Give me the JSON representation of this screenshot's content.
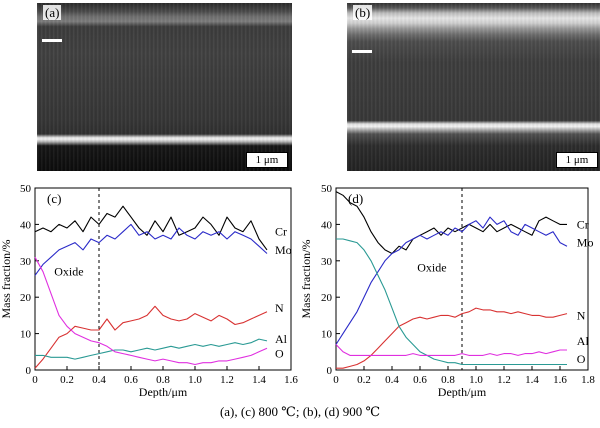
{
  "figure": {
    "caption": "(a), (c) 800 ℃; (b), (d) 900 ℃"
  },
  "micrographs": [
    {
      "label": "(a)",
      "scale_bar": "1 μm"
    },
    {
      "label": "(b)",
      "scale_bar": "1 μm"
    }
  ],
  "chart_data": [
    {
      "type": "line",
      "panel": "(c)",
      "xlabel": "Depth/μm",
      "ylabel": "Mass fraction/%",
      "xlim": [
        0,
        1.6
      ],
      "ylim": [
        0,
        50
      ],
      "xticks": [
        "0",
        "0.2",
        "0.4",
        "0.6",
        "0.8",
        "1.0",
        "1.2",
        "1.4",
        "1.6"
      ],
      "yticks": [
        "0",
        "10",
        "20",
        "30",
        "40",
        "50"
      ],
      "grid": false,
      "annotation": {
        "text": "Oxide",
        "x": 0.12,
        "y": 26
      },
      "divider_x": 0.4,
      "series": [
        {
          "name": "Cr",
          "color": "#000000",
          "label_pos": [
            1.5,
            38
          ],
          "x": [
            0,
            0.05,
            0.1,
            0.15,
            0.2,
            0.25,
            0.3,
            0.35,
            0.4,
            0.45,
            0.5,
            0.55,
            0.6,
            0.65,
            0.7,
            0.75,
            0.8,
            0.85,
            0.9,
            0.95,
            1.0,
            1.05,
            1.1,
            1.15,
            1.2,
            1.25,
            1.3,
            1.35,
            1.4,
            1.45
          ],
          "values": [
            38,
            39,
            38,
            40,
            39,
            41,
            38,
            42,
            40,
            43,
            42,
            45,
            42,
            39,
            37,
            41,
            38,
            42,
            37,
            38,
            39,
            42,
            40,
            37,
            42,
            39,
            38,
            41,
            36,
            33
          ]
        },
        {
          "name": "Mo",
          "color": "#2a2ac8",
          "label_pos": [
            1.5,
            33
          ],
          "x": [
            0,
            0.05,
            0.1,
            0.15,
            0.2,
            0.25,
            0.3,
            0.35,
            0.4,
            0.45,
            0.5,
            0.55,
            0.6,
            0.65,
            0.7,
            0.75,
            0.8,
            0.85,
            0.9,
            0.95,
            1.0,
            1.05,
            1.1,
            1.15,
            1.2,
            1.25,
            1.3,
            1.35,
            1.4,
            1.45
          ],
          "values": [
            26,
            29,
            31,
            33,
            34,
            35,
            33,
            36,
            35,
            37,
            36,
            38,
            40,
            37,
            38,
            36,
            37,
            36,
            39,
            37,
            36,
            38,
            37,
            38,
            36,
            38,
            37,
            36,
            34,
            32
          ]
        },
        {
          "name": "N",
          "color": "#d83232",
          "label_pos": [
            1.5,
            17
          ],
          "x": [
            0,
            0.05,
            0.1,
            0.15,
            0.2,
            0.25,
            0.3,
            0.35,
            0.4,
            0.45,
            0.5,
            0.55,
            0.6,
            0.65,
            0.7,
            0.75,
            0.8,
            0.85,
            0.9,
            0.95,
            1.0,
            1.05,
            1.1,
            1.15,
            1.2,
            1.25,
            1.3,
            1.35,
            1.4,
            1.45
          ],
          "values": [
            0.5,
            3,
            6,
            9,
            10,
            12,
            11.5,
            11,
            11,
            14,
            11,
            13,
            13.5,
            14,
            15,
            17.5,
            15,
            14,
            13.5,
            14,
            15.5,
            14.5,
            13.5,
            15,
            14,
            12.5,
            13,
            14,
            15,
            16
          ]
        },
        {
          "name": "Al",
          "color": "#2a9a94",
          "label_pos": [
            1.5,
            8.5
          ],
          "x": [
            0,
            0.05,
            0.1,
            0.15,
            0.2,
            0.25,
            0.3,
            0.35,
            0.4,
            0.45,
            0.5,
            0.55,
            0.6,
            0.65,
            0.7,
            0.75,
            0.8,
            0.85,
            0.9,
            0.95,
            1.0,
            1.05,
            1.1,
            1.15,
            1.2,
            1.25,
            1.3,
            1.35,
            1.4,
            1.45
          ],
          "values": [
            4,
            4,
            3.5,
            3.5,
            3.5,
            3,
            3.5,
            4,
            4.5,
            5,
            5.5,
            5.5,
            5,
            5.5,
            6,
            5.5,
            6,
            6.5,
            6,
            6.5,
            7,
            6.5,
            7,
            6.5,
            7,
            7.5,
            7,
            7.5,
            8.5,
            8
          ]
        },
        {
          "name": "O",
          "color": "#e030e0",
          "label_pos": [
            1.5,
            4.5
          ],
          "x": [
            0,
            0.05,
            0.1,
            0.15,
            0.2,
            0.25,
            0.3,
            0.35,
            0.4,
            0.45,
            0.5,
            0.55,
            0.6,
            0.65,
            0.7,
            0.75,
            0.8,
            0.85,
            0.9,
            0.95,
            1.0,
            1.05,
            1.1,
            1.15,
            1.2,
            1.25,
            1.3,
            1.35,
            1.4,
            1.45
          ],
          "values": [
            31,
            27,
            21,
            15,
            12,
            10,
            9,
            8,
            7.5,
            6.5,
            5,
            4.5,
            4,
            3.5,
            3,
            2.5,
            3,
            2.5,
            2,
            2,
            1.5,
            2,
            2,
            2.5,
            2.5,
            3,
            3.5,
            4,
            5,
            6
          ]
        }
      ]
    },
    {
      "type": "line",
      "panel": "(d)",
      "xlabel": "Depth/μm",
      "ylabel": "Mass fraction/%",
      "xlim": [
        0,
        1.8
      ],
      "ylim": [
        0,
        50
      ],
      "xticks": [
        "0",
        "0.2",
        "0.4",
        "0.6",
        "0.8",
        "1.0",
        "1.2",
        "1.4",
        "1.6",
        "1.8"
      ],
      "yticks": [
        "0",
        "10",
        "20",
        "30",
        "40",
        "50"
      ],
      "grid": false,
      "annotation": {
        "text": "Oxide",
        "x": 0.58,
        "y": 27
      },
      "divider_x": 0.9,
      "series": [
        {
          "name": "Cr",
          "color": "#000000",
          "label_pos": [
            1.72,
            40
          ],
          "x": [
            0,
            0.05,
            0.1,
            0.15,
            0.2,
            0.25,
            0.3,
            0.35,
            0.4,
            0.45,
            0.5,
            0.55,
            0.6,
            0.65,
            0.7,
            0.75,
            0.8,
            0.85,
            0.9,
            0.95,
            1.0,
            1.05,
            1.1,
            1.15,
            1.2,
            1.25,
            1.3,
            1.35,
            1.4,
            1.45,
            1.5,
            1.55,
            1.6,
            1.65
          ],
          "values": [
            49,
            48,
            46,
            45,
            42,
            38,
            35,
            33,
            32,
            34,
            33,
            36,
            37,
            38,
            39,
            37,
            39,
            38,
            39,
            40,
            39,
            38,
            40,
            38,
            39,
            40,
            39,
            38,
            37,
            41,
            42,
            41,
            40,
            40
          ]
        },
        {
          "name": "Mo",
          "color": "#2a2ac8",
          "label_pos": [
            1.72,
            35
          ],
          "x": [
            0,
            0.05,
            0.1,
            0.15,
            0.2,
            0.25,
            0.3,
            0.35,
            0.4,
            0.45,
            0.5,
            0.55,
            0.6,
            0.65,
            0.7,
            0.75,
            0.8,
            0.85,
            0.9,
            0.95,
            1.0,
            1.05,
            1.1,
            1.15,
            1.2,
            1.25,
            1.3,
            1.35,
            1.4,
            1.45,
            1.5,
            1.55,
            1.6,
            1.65
          ],
          "values": [
            7,
            10,
            13,
            16,
            20,
            24,
            27,
            30,
            32,
            33,
            35,
            36,
            37,
            36,
            37,
            38,
            37,
            39,
            38,
            40,
            41,
            39,
            42,
            40,
            41,
            38,
            37,
            40,
            39,
            38,
            37,
            38,
            35,
            34
          ]
        },
        {
          "name": "N",
          "color": "#d83232",
          "label_pos": [
            1.72,
            15
          ],
          "x": [
            0,
            0.05,
            0.1,
            0.15,
            0.2,
            0.25,
            0.3,
            0.35,
            0.4,
            0.45,
            0.5,
            0.55,
            0.6,
            0.65,
            0.7,
            0.75,
            0.8,
            0.85,
            0.9,
            0.95,
            1.0,
            1.05,
            1.1,
            1.15,
            1.2,
            1.25,
            1.3,
            1.35,
            1.4,
            1.45,
            1.5,
            1.55,
            1.6,
            1.65
          ],
          "values": [
            0.5,
            0.5,
            1,
            1.5,
            2.5,
            4,
            6,
            8,
            10,
            12,
            13,
            14,
            14.5,
            14,
            14.5,
            15,
            15,
            14.5,
            15.5,
            16,
            17,
            16.5,
            16.5,
            16,
            16,
            15.5,
            16,
            15.5,
            15,
            15,
            14.5,
            14.5,
            15,
            15.5
          ]
        },
        {
          "name": "Al",
          "color": "#2a9a94",
          "label_pos": [
            1.72,
            8
          ],
          "x": [
            0,
            0.05,
            0.1,
            0.15,
            0.2,
            0.25,
            0.3,
            0.35,
            0.4,
            0.45,
            0.5,
            0.55,
            0.6,
            0.65,
            0.7,
            0.75,
            0.8,
            0.85,
            0.9,
            0.95,
            1.0,
            1.05,
            1.1,
            1.15,
            1.2,
            1.25,
            1.3,
            1.35,
            1.4,
            1.45,
            1.5,
            1.55,
            1.6,
            1.65
          ],
          "values": [
            36,
            36,
            35.5,
            35,
            33,
            30,
            26,
            22,
            17,
            12,
            9,
            7,
            5,
            4,
            3,
            2.5,
            2,
            2,
            1.5,
            1.5,
            1.5,
            1.5,
            1.5,
            1.5,
            1.5,
            1.5,
            1.5,
            1.5,
            1.5,
            1.5,
            1.5,
            1.5,
            1.5,
            1.5
          ]
        },
        {
          "name": "O",
          "color": "#e030e0",
          "label_pos": [
            1.72,
            3
          ],
          "x": [
            0,
            0.05,
            0.1,
            0.15,
            0.2,
            0.25,
            0.3,
            0.35,
            0.4,
            0.45,
            0.5,
            0.55,
            0.6,
            0.65,
            0.7,
            0.75,
            0.8,
            0.85,
            0.9,
            0.95,
            1.0,
            1.05,
            1.1,
            1.15,
            1.2,
            1.25,
            1.3,
            1.35,
            1.4,
            1.45,
            1.5,
            1.55,
            1.6,
            1.65
          ],
          "values": [
            7,
            5,
            4,
            4,
            4,
            4,
            4,
            4,
            4,
            4,
            4,
            4.5,
            4,
            4,
            4,
            4,
            4,
            4,
            4.5,
            4,
            4,
            4,
            4.5,
            4,
            4.5,
            4.5,
            4,
            4.5,
            4.5,
            5,
            4.5,
            5,
            5.5,
            5.5
          ]
        }
      ]
    }
  ]
}
